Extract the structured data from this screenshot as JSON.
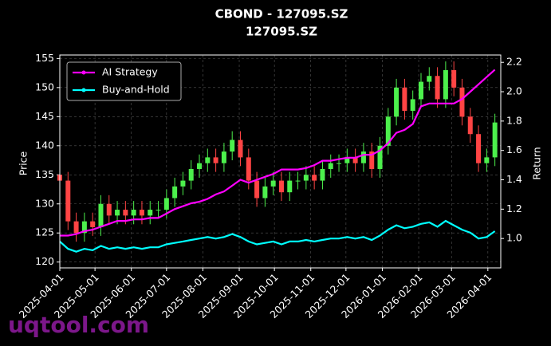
{
  "chart_data": {
    "type": "candlestick",
    "title": "CBOND - 127095.SZ",
    "subtitle": "127095.SZ",
    "y_label": "Price",
    "y2_label": "Return",
    "watermark": "uqtool.com",
    "legend": "upper left",
    "grid": true,
    "up_color": "#4cf04c",
    "down_color": "#ff4444",
    "xlim": [
      "2025-04-01",
      "2026-04-12"
    ],
    "xticks": [
      "2025-04-01",
      "2025-05-01",
      "2025-06-01",
      "2025-07-01",
      "2025-08-01",
      "2025-09-01",
      "2025-10-01",
      "2025-11-01",
      "2025-12-01",
      "2026-01-01",
      "2026-02-01",
      "2026-03-01",
      "2026-04-01"
    ],
    "ylim": [
      119,
      155.6
    ],
    "yticks": [
      120,
      125,
      130,
      135,
      140,
      145,
      150,
      155
    ],
    "y2lim": [
      0.8,
      2.25
    ],
    "y2ticks": [
      {
        "value": 1,
        "label": "1.0"
      },
      1.2,
      1.4,
      1.6,
      1.8,
      {
        "value": 2,
        "label": "2.0"
      },
      2.2
    ],
    "x": [
      "2025-04-01",
      "2025-04-08",
      "2025-04-15",
      "2025-04-22",
      "2025-04-29",
      "2025-05-06",
      "2025-05-13",
      "2025-05-20",
      "2025-05-27",
      "2025-06-03",
      "2025-06-10",
      "2025-06-17",
      "2025-06-24",
      "2025-07-01",
      "2025-07-08",
      "2025-07-15",
      "2025-07-22",
      "2025-07-29",
      "2025-08-05",
      "2025-08-12",
      "2025-08-19",
      "2025-08-26",
      "2025-09-02",
      "2025-09-09",
      "2025-09-16",
      "2025-09-23",
      "2025-09-30",
      "2025-10-07",
      "2025-10-14",
      "2025-10-21",
      "2025-10-28",
      "2025-11-04",
      "2025-11-11",
      "2025-11-18",
      "2025-11-25",
      "2025-12-02",
      "2025-12-09",
      "2025-12-16",
      "2025-12-23",
      "2025-12-30",
      "2026-01-06",
      "2026-01-13",
      "2026-01-20",
      "2026-01-27",
      "2026-02-03",
      "2026-02-10",
      "2026-02-17",
      "2026-02-24",
      "2026-03-03",
      "2026-03-10",
      "2026-03-17",
      "2026-03-24",
      "2026-03-31",
      "2026-04-07"
    ],
    "open": [
      135,
      134,
      127,
      125,
      127,
      126,
      130,
      128,
      129,
      128,
      129,
      128,
      129,
      129,
      131,
      133,
      134,
      136,
      137,
      138,
      137,
      139,
      141,
      138,
      134,
      131,
      133,
      134,
      132,
      134,
      134,
      135,
      134,
      136,
      137,
      137,
      138,
      137,
      139,
      136,
      140,
      145,
      150,
      146,
      148,
      151,
      152,
      148,
      153,
      150,
      145,
      142,
      137,
      138
    ],
    "high": [
      136.5,
      135.5,
      128.5,
      128.5,
      128.5,
      131.5,
      131.5,
      130.5,
      130.5,
      130.5,
      130.5,
      130.5,
      130.5,
      132.5,
      134.5,
      135.5,
      137.5,
      138.5,
      139.5,
      139.5,
      140.5,
      142.5,
      142.5,
      139.5,
      135.5,
      134.5,
      135.5,
      135.5,
      135.5,
      135.5,
      136.5,
      136.5,
      137.5,
      138.5,
      138.5,
      139.5,
      139.5,
      140.5,
      140.5,
      141.5,
      146.5,
      151.5,
      151.5,
      149.5,
      152.5,
      153.5,
      153.5,
      154.5,
      154.5,
      151.5,
      146.5,
      143.5,
      139.5,
      145.5
    ],
    "low": [
      132.5,
      125.5,
      123.5,
      123.5,
      124.5,
      124.5,
      126.5,
      126.5,
      126.5,
      126.5,
      126.5,
      126.5,
      127.5,
      127.5,
      129.5,
      131.5,
      132.5,
      134.5,
      135.5,
      135.5,
      135.5,
      137.5,
      136.5,
      132.5,
      129.5,
      129.5,
      131.5,
      130.5,
      130.5,
      132.5,
      132.5,
      132.5,
      132.5,
      134.5,
      135.5,
      135.5,
      135.5,
      135.5,
      134.5,
      134.5,
      138.5,
      143.5,
      144.5,
      144.5,
      146.5,
      149.5,
      146.5,
      146.5,
      148.5,
      143.5,
      140.5,
      135.5,
      135.5,
      136.5
    ],
    "close": [
      134,
      127,
      125,
      127,
      126,
      130,
      128,
      129,
      128,
      129,
      128,
      129,
      129,
      131,
      133,
      134,
      136,
      137,
      138,
      137,
      139,
      141,
      138,
      134,
      131,
      133,
      134,
      132,
      134,
      134,
      135,
      134,
      136,
      137,
      137,
      138,
      137,
      139,
      136,
      140,
      145,
      150,
      146,
      148,
      151,
      152,
      148,
      153,
      150,
      145,
      142,
      137,
      138,
      144
    ],
    "series": [
      {
        "name": "AI Strategy",
        "color": "#ff00ff",
        "axis": "y2",
        "values": [
          1.02,
          1.02,
          1.03,
          1.05,
          1.06,
          1.08,
          1.1,
          1.12,
          1.12,
          1.13,
          1.13,
          1.14,
          1.14,
          1.17,
          1.2,
          1.22,
          1.24,
          1.25,
          1.27,
          1.3,
          1.32,
          1.36,
          1.4,
          1.38,
          1.4,
          1.42,
          1.44,
          1.47,
          1.47,
          1.47,
          1.48,
          1.5,
          1.53,
          1.53,
          1.54,
          1.55,
          1.55,
          1.57,
          1.57,
          1.6,
          1.65,
          1.72,
          1.74,
          1.78,
          1.9,
          1.92,
          1.92,
          1.92,
          1.92,
          1.95,
          2,
          2.05,
          2.1,
          2.15
        ]
      },
      {
        "name": "Buy-and-Hold",
        "color": "#00ffff",
        "axis": "y2",
        "values": [
          0.98,
          0.93,
          0.91,
          0.93,
          0.92,
          0.95,
          0.93,
          0.94,
          0.93,
          0.94,
          0.93,
          0.94,
          0.94,
          0.96,
          0.97,
          0.98,
          0.99,
          1,
          1.01,
          1,
          1.01,
          1.03,
          1.01,
          0.98,
          0.96,
          0.97,
          0.98,
          0.96,
          0.98,
          0.98,
          0.99,
          0.98,
          0.99,
          1,
          1,
          1.01,
          1,
          1.01,
          0.99,
          1.02,
          1.06,
          1.09,
          1.07,
          1.08,
          1.1,
          1.11,
          1.08,
          1.12,
          1.09,
          1.06,
          1.04,
          1,
          1.01,
          1.05
        ]
      }
    ]
  }
}
